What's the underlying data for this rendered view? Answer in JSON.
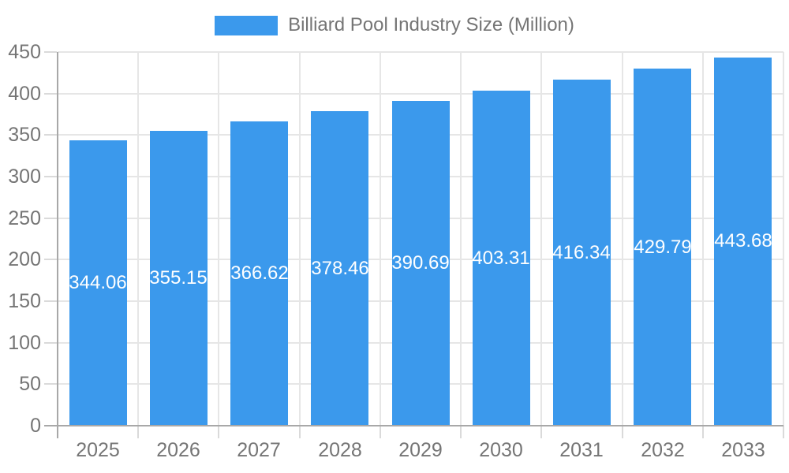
{
  "chart_data": {
    "type": "bar",
    "title": "Billiard Pool Industry Size (Million)",
    "legend": [
      "Billiard Pool Industry Size (Million)"
    ],
    "legend_position": "top-center",
    "categories": [
      "2025",
      "2026",
      "2027",
      "2028",
      "2029",
      "2030",
      "2031",
      "2032",
      "2033"
    ],
    "values": [
      344.06,
      355.15,
      366.62,
      378.46,
      390.69,
      403.31,
      416.34,
      429.79,
      443.68
    ],
    "value_labels": [
      "344.06",
      "355.15",
      "366.62",
      "378.46",
      "390.69",
      "403.31",
      "416.34",
      "429.79",
      "443.68"
    ],
    "xlabel": "",
    "ylabel": "",
    "ylim": [
      0,
      450
    ],
    "yticks": [
      0,
      50,
      100,
      150,
      200,
      250,
      300,
      350,
      400,
      450
    ],
    "grid": true,
    "colors": {
      "bar": "#3B99EC",
      "axis": "#A8A8A8",
      "grid": "#E6E6E6",
      "tick": "#DADADA",
      "text": "#757575",
      "value_label": "#FFFFFF",
      "background": "#FFFFFF"
    }
  }
}
